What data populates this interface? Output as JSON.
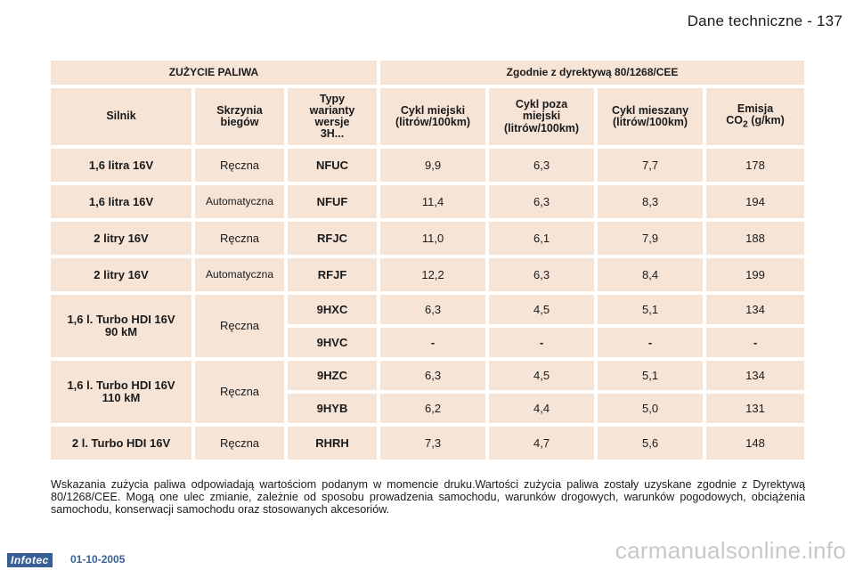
{
  "header": {
    "title": "Dane techniczne - 137"
  },
  "table": {
    "group_left": "ZUŻYCIE PALIWA",
    "group_right": "Zgodnie z dyrektywą 80/1268/CEE",
    "columns": {
      "engine": "Silnik",
      "gearbox_line1": "Skrzynia",
      "gearbox_line2": "biegów",
      "type_line1": "Typy",
      "type_line2": "warianty",
      "type_line3": "wersje",
      "type_line4": "3H...",
      "urban_line1": "Cykl miejski",
      "urban_line2": "(litrów/100km)",
      "extra_line1": "Cykl poza",
      "extra_line2": "miejski",
      "extra_line3": "(litrów/100km)",
      "mixed_line1": "Cykl mieszany",
      "mixed_line2": "(litrów/100km)",
      "co2_line1": "Emisja",
      "co2_prefix": "CO",
      "co2_sub": "2",
      "co2_unit": " (g/km)"
    },
    "rows": [
      {
        "engine": "1,6 litra 16V",
        "gearbox": "Ręczna",
        "type": "NFUC",
        "urban": "9,9",
        "extra": "6,3",
        "mixed": "7,7",
        "co2": "178"
      },
      {
        "engine": "1,6 litra 16V",
        "gearbox": "Automatyczna",
        "type": "NFUF",
        "urban": "11,4",
        "extra": "6,3",
        "mixed": "8,3",
        "co2": "194"
      },
      {
        "engine": "2 litry 16V",
        "gearbox": "Ręczna",
        "type": "RFJC",
        "urban": "11,0",
        "extra": "6,1",
        "mixed": "7,9",
        "co2": "188"
      },
      {
        "engine": "2 litry 16V",
        "gearbox": "Automatyczna",
        "type": "RFJF",
        "urban": "12,2",
        "extra": "6,3",
        "mixed": "8,4",
        "co2": "199"
      },
      {
        "engine_line1": "1,6 l. Turbo HDI 16V",
        "engine_line2": "90 kM",
        "gearbox": "Ręczna",
        "a": {
          "type": "9HXC",
          "urban": "6,3",
          "extra": "4,5",
          "mixed": "5,1",
          "co2": "134"
        },
        "b": {
          "type": "9HVC",
          "urban": "-",
          "extra": "-",
          "mixed": "-",
          "co2": "-"
        }
      },
      {
        "engine_line1": "1,6 l. Turbo HDI 16V",
        "engine_line2": "110 kM",
        "gearbox": "Ręczna",
        "a": {
          "type": "9HZC",
          "urban": "6,3",
          "extra": "4,5",
          "mixed": "5,1",
          "co2": "134"
        },
        "b": {
          "type": "9HYB",
          "urban": "6,2",
          "extra": "4,4",
          "mixed": "5,0",
          "co2": "131"
        }
      },
      {
        "engine": "2 l. Turbo HDI 16V",
        "gearbox": "Ręczna",
        "type": "RHRH",
        "urban": "7,3",
        "extra": "4,7",
        "mixed": "5,6",
        "co2": "148"
      }
    ]
  },
  "note": "Wskazania zużycia paliwa odpowiadają wartościom podanym w momencie druku.Wartości zużycia paliwa zostały uzyskane zgodnie z Dyrektywą 80/1268/CEE. Mogą one ulec zmianie, zależnie od sposobu prowadzenia samochodu, warunków drogowych, warunków pogodowych, obciążenia samochodu, konserwacji samochodu oraz stosowanych akcesoriów.",
  "footer": {
    "logo": "Infotec",
    "date": "01-10-2005"
  },
  "watermark": "carmanualsonline.info"
}
